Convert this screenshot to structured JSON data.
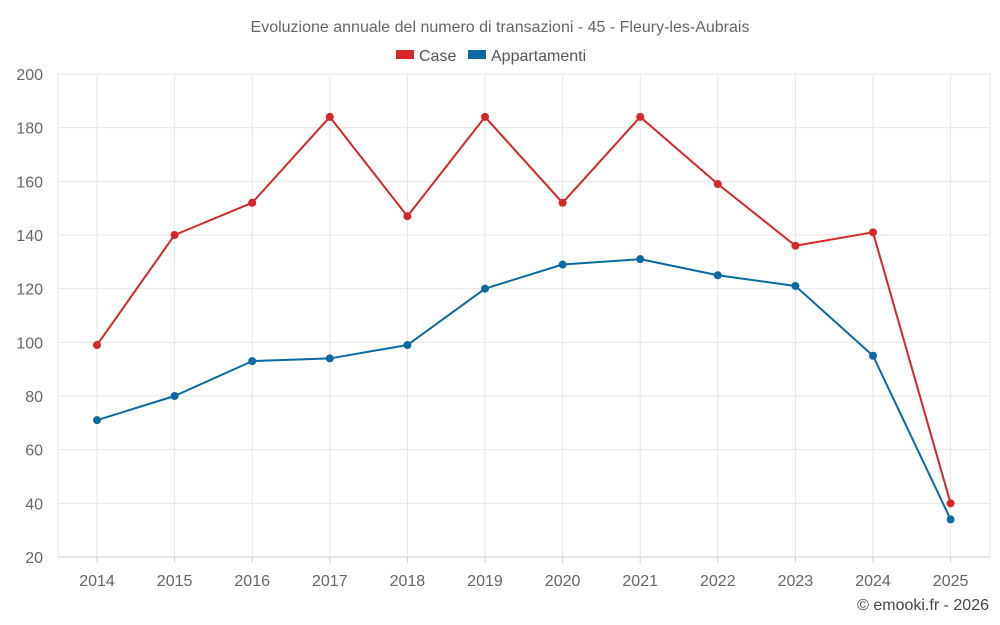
{
  "chart_data": {
    "type": "line",
    "title": "Evoluzione annuale del numero di transazioni - 45 - Fleury-les-Aubrais",
    "categories": [
      "2014",
      "2015",
      "2016",
      "2017",
      "2018",
      "2019",
      "2020",
      "2021",
      "2022",
      "2023",
      "2024",
      "2025"
    ],
    "series": [
      {
        "name": "Case",
        "color": "#d62728",
        "values": [
          99,
          140,
          152,
          184,
          147,
          184,
          152,
          184,
          159,
          136,
          141,
          40
        ]
      },
      {
        "name": "Appartamenti",
        "color": "#0b6aa2",
        "values": [
          71,
          80,
          93,
          94,
          99,
          120,
          129,
          131,
          125,
          121,
          95,
          34
        ]
      }
    ],
    "ylim": [
      20,
      200
    ],
    "yticks": [
      20,
      40,
      60,
      80,
      100,
      120,
      140,
      160,
      180,
      200
    ],
    "xlabel": "",
    "ylabel": "",
    "grid": true,
    "legend": "top-center"
  },
  "credit": "© emooki.fr - 2026"
}
